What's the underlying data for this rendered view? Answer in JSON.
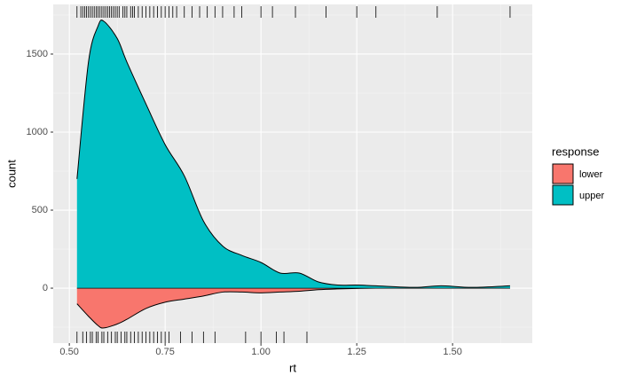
{
  "chart_data": {
    "type": "area",
    "x_label": "rt",
    "y_label": "count",
    "legend_title": "response",
    "x": [
      0.52,
      0.55,
      0.575,
      0.59,
      0.625,
      0.65,
      0.7,
      0.75,
      0.8,
      0.85,
      0.9,
      0.95,
      1.0,
      1.05,
      1.1,
      1.15,
      1.2,
      1.25,
      1.3,
      1.4,
      1.47,
      1.55,
      1.65
    ],
    "series": [
      {
        "name": "lower",
        "color": "#F8766D",
        "values": [
          -100,
          -180,
          -240,
          -255,
          -230,
          -200,
          -130,
          -90,
          -70,
          -50,
          -25,
          -25,
          -30,
          -25,
          -20,
          -10,
          -5,
          -2,
          0,
          0,
          0,
          0,
          0
        ],
        "rug": [
          0.52,
          0.535,
          0.545,
          0.555,
          0.56,
          0.57,
          0.575,
          0.585,
          0.59,
          0.6,
          0.61,
          0.62,
          0.625,
          0.635,
          0.645,
          0.65,
          0.66,
          0.67,
          0.68,
          0.69,
          0.7,
          0.71,
          0.72,
          0.73,
          0.74,
          0.75,
          0.76,
          0.79,
          0.82,
          0.85,
          0.88,
          0.96,
          1.0,
          1.04,
          1.06,
          1.12
        ]
      },
      {
        "name": "upper",
        "color": "#00BFC4",
        "values": [
          700,
          1450,
          1680,
          1710,
          1600,
          1450,
          1180,
          920,
          720,
          430,
          270,
          210,
          165,
          97,
          97,
          40,
          20,
          20,
          15,
          5,
          15,
          5,
          15
        ],
        "rug": [
          0.52,
          0.53,
          0.535,
          0.54,
          0.545,
          0.55,
          0.555,
          0.56,
          0.565,
          0.57,
          0.575,
          0.58,
          0.585,
          0.59,
          0.595,
          0.6,
          0.605,
          0.61,
          0.615,
          0.62,
          0.625,
          0.63,
          0.64,
          0.645,
          0.65,
          0.66,
          0.665,
          0.67,
          0.68,
          0.69,
          0.7,
          0.71,
          0.72,
          0.73,
          0.74,
          0.75,
          0.76,
          0.77,
          0.78,
          0.8,
          0.82,
          0.84,
          0.86,
          0.88,
          0.9,
          0.93,
          0.95,
          1.0,
          1.03,
          1.09,
          1.17,
          1.25,
          1.3,
          1.46,
          1.65
        ]
      }
    ],
    "xlim": [
      0.458,
      1.708
    ],
    "ylim": [
      -352,
      1818
    ],
    "xticks": [
      {
        "value": 0.5,
        "label": "0.50"
      },
      {
        "value": 0.75,
        "label": "0.75"
      },
      {
        "value": 1.0,
        "label": "1.00"
      },
      {
        "value": 1.25,
        "label": "1.25"
      },
      {
        "value": 1.5,
        "label": "1.50"
      }
    ],
    "yticks": [
      0,
      500,
      1000,
      1500
    ],
    "grid": true,
    "legend": "right"
  }
}
